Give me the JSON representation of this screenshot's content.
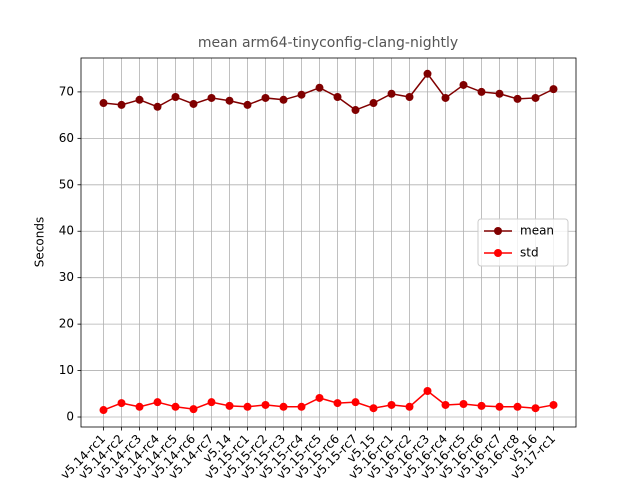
{
  "chart_data": {
    "type": "line",
    "title": "mean arm64-tinyconfig-clang-nightly",
    "y_label": "Seconds",
    "categories": [
      "v5.14-rc1",
      "v5.14-rc2",
      "v5.14-rc3",
      "v5.14-rc4",
      "v5.14-rc5",
      "v5.14-rc6",
      "v5.14-rc7",
      "v5.14",
      "v5.15-rc1",
      "v5.15-rc2",
      "v5.15-rc3",
      "v5.15-rc4",
      "v5.15-rc5",
      "v5.15-rc6",
      "v5.15-rc7",
      "v5.15",
      "v5.16-rc1",
      "v5.16-rc2",
      "v5.16-rc3",
      "v5.16-rc4",
      "v5.16-rc5",
      "v5.16-rc6",
      "v5.16-rc7",
      "v5.16-rc8",
      "v5.16",
      "v5.17-rc1"
    ],
    "series": [
      {
        "name": "mean",
        "color": "#800000",
        "values": [
          67.6,
          67.2,
          68.3,
          66.8,
          68.9,
          67.4,
          68.7,
          68.1,
          67.2,
          68.7,
          68.3,
          69.4,
          70.9,
          68.9,
          66.1,
          67.6,
          69.6,
          68.9,
          73.9,
          68.7,
          71.5,
          70.0,
          69.6,
          68.5,
          68.7,
          70.6
        ]
      },
      {
        "name": "std",
        "color": "#ff0000",
        "values": [
          1.5,
          3.0,
          2.2,
          3.2,
          2.2,
          1.7,
          3.2,
          2.4,
          2.2,
          2.6,
          2.2,
          2.2,
          4.1,
          3.0,
          3.2,
          1.9,
          2.6,
          2.2,
          5.6,
          2.6,
          2.8,
          2.4,
          2.2,
          2.2,
          1.9,
          2.6
        ]
      }
    ],
    "ylim": [
      -2.15,
      77.3
    ],
    "yticks": [
      0,
      10,
      20,
      30,
      40,
      50,
      60,
      70
    ],
    "grid": true,
    "legend": "center right"
  }
}
